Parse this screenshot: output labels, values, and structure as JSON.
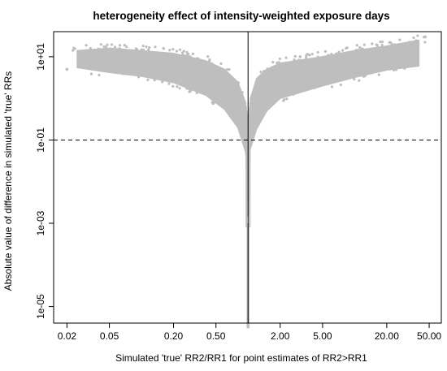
{
  "chart_data": {
    "type": "scatter",
    "title": "heterogeneity effect of intensity-weighted exposure days",
    "xlabel": "Simulated 'true' RR2/RR1 for point estimates of RR2>RR1",
    "ylabel": "Absolute value of difference in simulated 'true' RRs",
    "x_scale": "log",
    "y_scale": "log",
    "xlim": [
      0.015,
      65
    ],
    "ylim": [
      4e-06,
      40
    ],
    "x_ticks": [
      0.02,
      0.05,
      0.2,
      0.5,
      2,
      5,
      20,
      50
    ],
    "x_tick_labels": [
      "0.02",
      "0.05",
      "0.20",
      "0.50",
      "2.00",
      "5.00",
      "20.00",
      "50.00"
    ],
    "y_ticks": [
      1e-05,
      0.001,
      0.1,
      10
    ],
    "y_tick_labels": [
      "1e-05",
      "1e-03",
      "1e-01",
      "1e+01"
    ],
    "vline_x": 1,
    "hline_y": 0.1,
    "hline_style": "dashed",
    "point_color": "#bebebe",
    "grid": false,
    "cloud": {
      "left_lower_envelope": [
        [
          0.025,
          5.5
        ],
        [
          0.05,
          4.2
        ],
        [
          0.1,
          3.4
        ],
        [
          0.2,
          2.4
        ],
        [
          0.4,
          1.2
        ],
        [
          0.6,
          0.55
        ],
        [
          0.8,
          0.2
        ],
        [
          0.95,
          0.05
        ],
        [
          1.0,
          0.001
        ]
      ],
      "left_upper_envelope": [
        [
          0.025,
          14
        ],
        [
          0.05,
          16
        ],
        [
          0.1,
          14
        ],
        [
          0.2,
          12
        ],
        [
          0.4,
          8
        ],
        [
          0.6,
          5
        ],
        [
          0.8,
          2.5
        ],
        [
          0.95,
          0.8
        ],
        [
          1.0,
          0.3
        ]
      ],
      "right_lower_envelope": [
        [
          1.0,
          0.001
        ],
        [
          1.05,
          0.06
        ],
        [
          1.2,
          0.18
        ],
        [
          1.5,
          0.5
        ],
        [
          2,
          1.0
        ],
        [
          5,
          2.0
        ],
        [
          10,
          3.2
        ],
        [
          20,
          4.8
        ],
        [
          40,
          6
        ]
      ],
      "right_upper_envelope": [
        [
          1.0,
          0.3
        ],
        [
          1.05,
          1.0
        ],
        [
          1.2,
          3
        ],
        [
          1.5,
          5
        ],
        [
          2,
          7
        ],
        [
          5,
          10
        ],
        [
          10,
          14
        ],
        [
          20,
          18
        ],
        [
          40,
          25
        ]
      ],
      "stem_range": [
        3e-06,
        0.001
      ]
    }
  }
}
